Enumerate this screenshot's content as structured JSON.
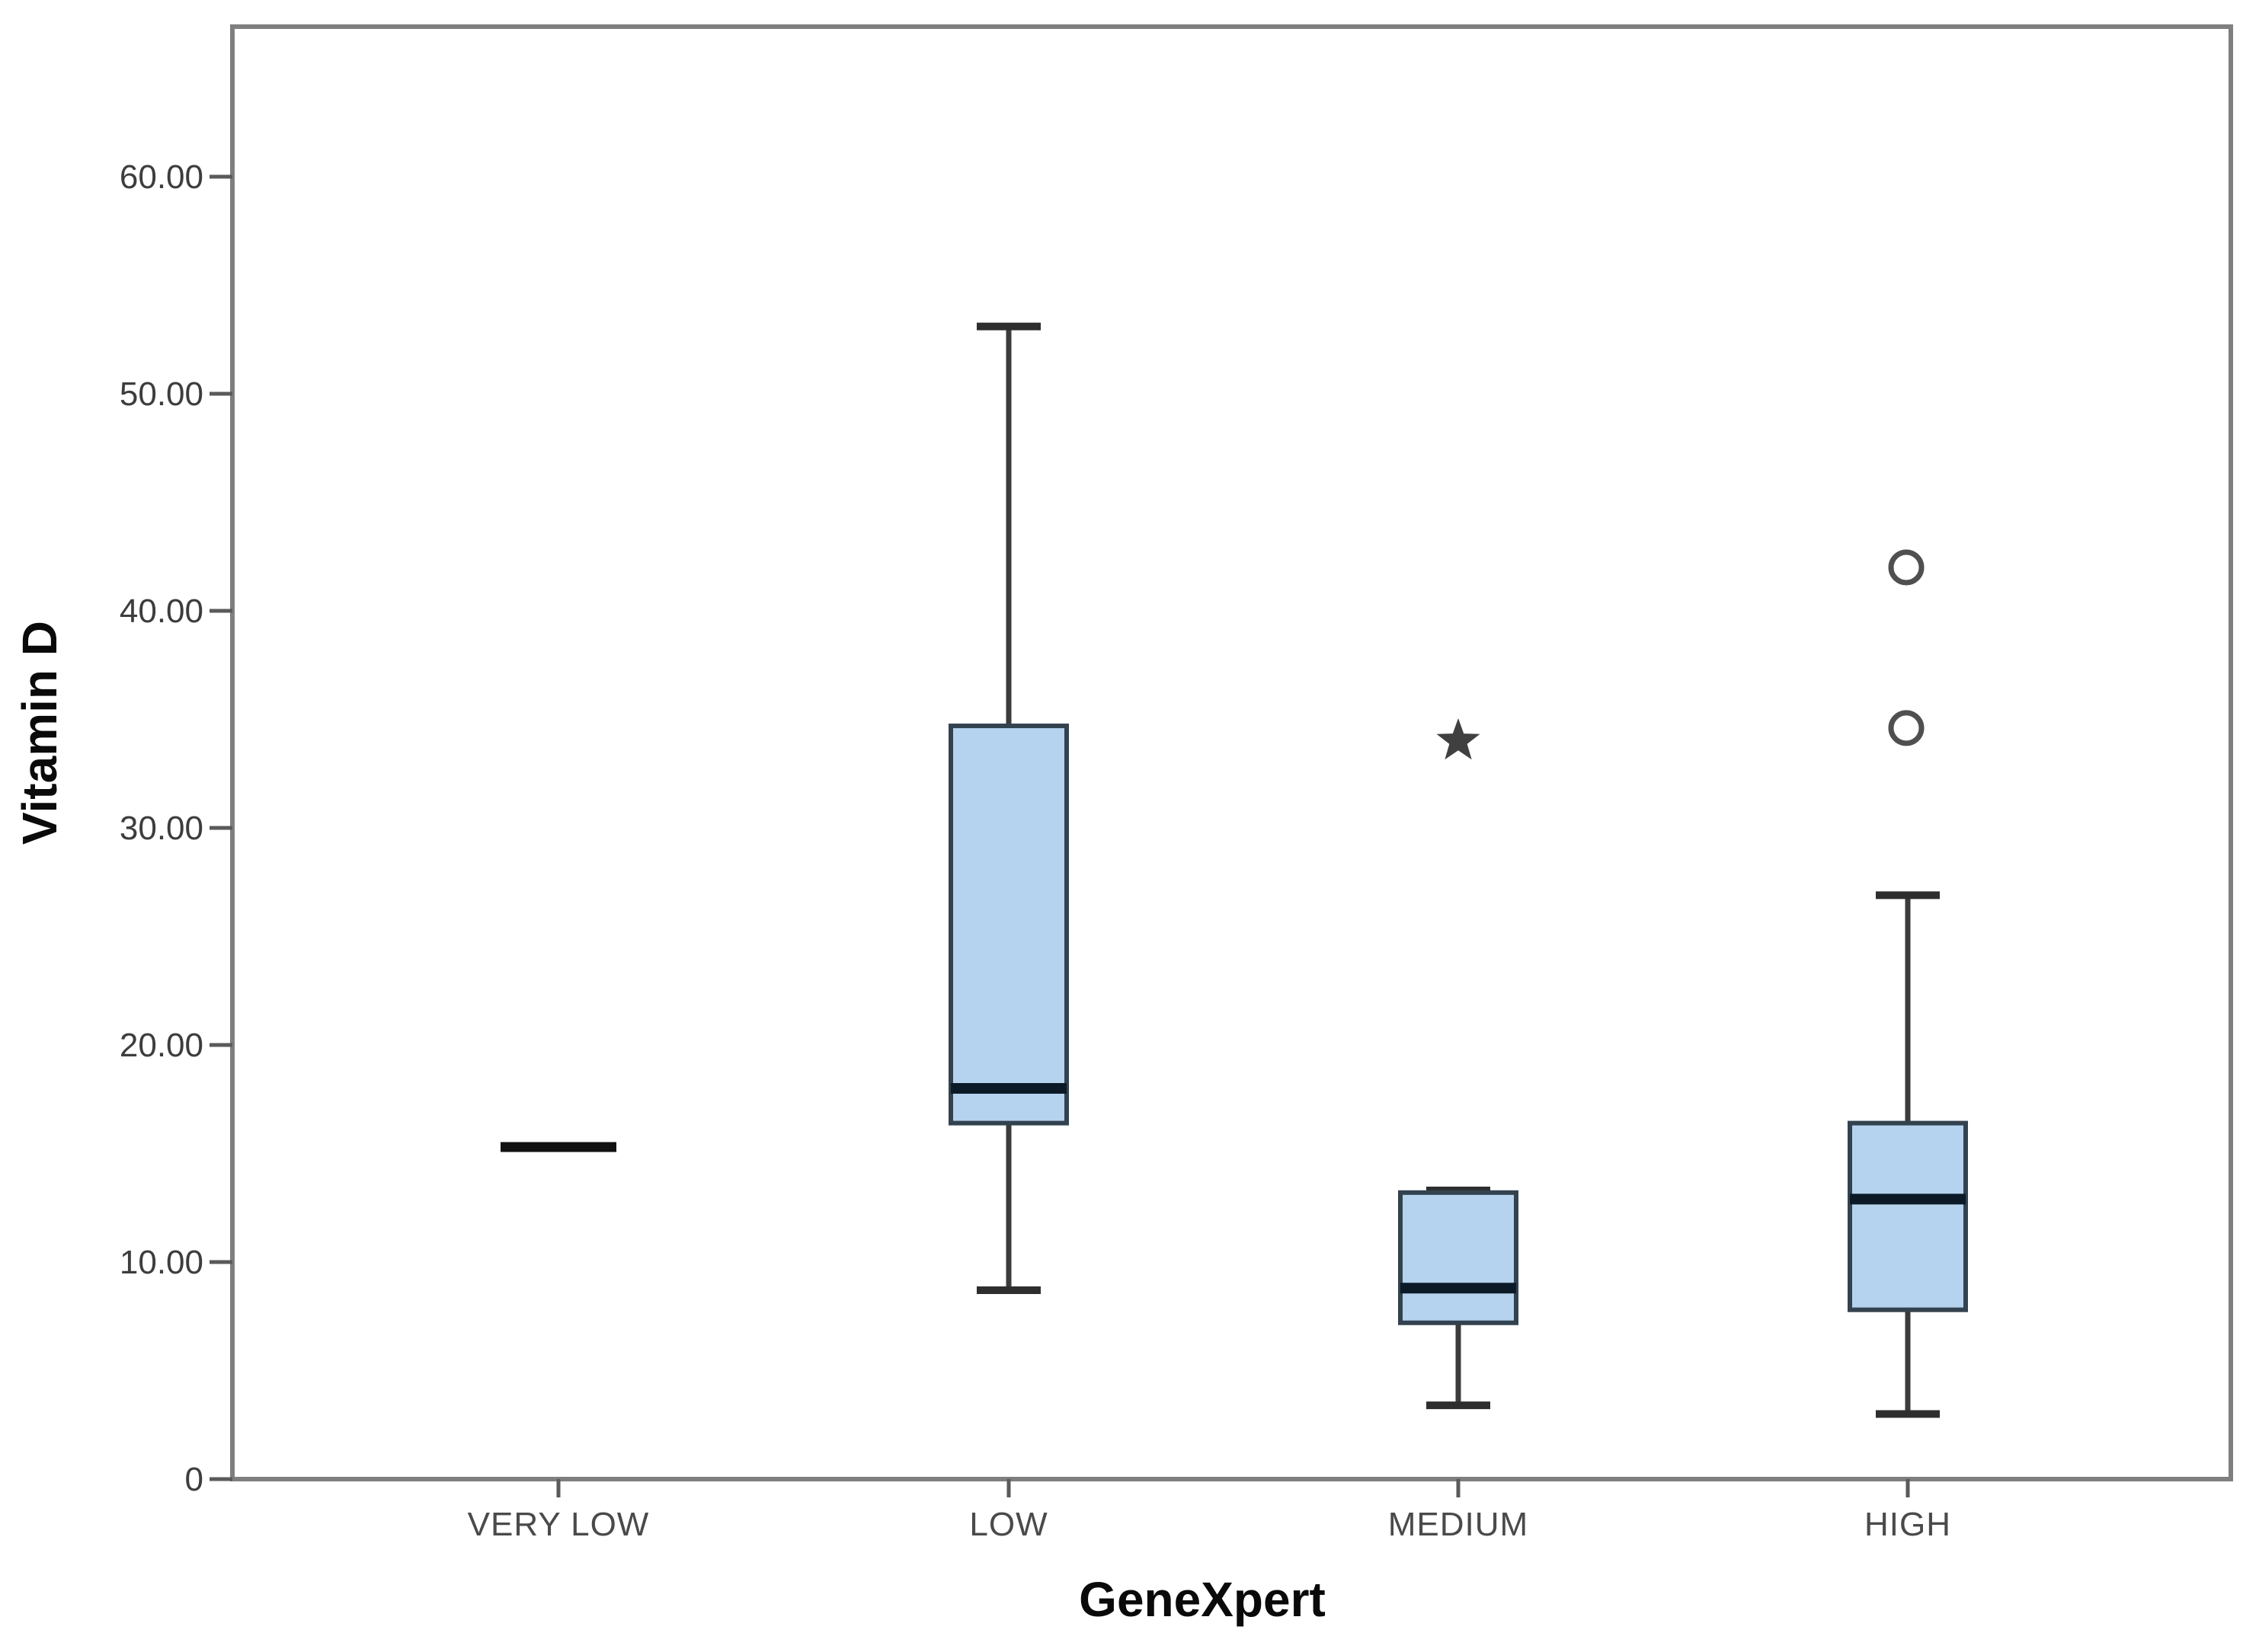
{
  "page": {
    "background_color": "#ffffff"
  },
  "chart_data": {
    "type": "boxplot",
    "title": "",
    "xlabel": "GeneXpert",
    "ylabel": "Vitamin D",
    "grid": false,
    "legend_position": "none",
    "y_axis": {
      "min": 0,
      "max": 66.9,
      "ticks": [
        {
          "value": 0,
          "label": "0"
        },
        {
          "value": 10,
          "label": "10.00"
        },
        {
          "value": 20,
          "label": "20.00"
        },
        {
          "value": 30,
          "label": "30.00"
        },
        {
          "value": 40,
          "label": "40.00"
        },
        {
          "value": 50,
          "label": "50.00"
        },
        {
          "value": 60,
          "label": "60.00"
        }
      ]
    },
    "categories": [
      "VERY LOW",
      "LOW",
      "MEDIUM",
      "HIGH"
    ],
    "boxes": [
      {
        "category": "VERY LOW",
        "single_value": 15.3,
        "whisker_low": null,
        "q1": null,
        "median": null,
        "q3": null,
        "whisker_high": null,
        "circle_outliers": [],
        "star_outliers": []
      },
      {
        "category": "LOW",
        "single_value": null,
        "whisker_low": 8.7,
        "q1": 16.4,
        "median": 18.0,
        "q3": 34.7,
        "whisker_high": 53.1,
        "circle_outliers": [],
        "star_outliers": []
      },
      {
        "category": "MEDIUM",
        "single_value": null,
        "whisker_low": 3.4,
        "q1": 7.2,
        "median": 8.8,
        "q3": 13.2,
        "whisker_high": 13.3,
        "circle_outliers": [],
        "star_outliers": [
          34.0
        ]
      },
      {
        "category": "HIGH",
        "single_value": null,
        "whisker_low": 3.0,
        "q1": 7.8,
        "median": 12.9,
        "q3": 16.4,
        "whisker_high": 26.9,
        "circle_outliers": [
          42.0,
          34.6
        ],
        "star_outliers": []
      }
    ],
    "colors": {
      "box_fill": "#b5d3ee",
      "box_border": "#33424f",
      "median_line": "#0c1a28",
      "single_value_line": "#111111",
      "whisker": "#3b3b3b",
      "whisker_cap": "#2e2e2e",
      "outlier_stroke": "#4f4f4f",
      "star_fill": "#404040",
      "frame": "#7f7f7f",
      "tick_mark": "#5a5a5a",
      "tick_label": "#3d3d3d",
      "category_label": "#4a4a4a",
      "axis_title": "#0a0a0a"
    }
  }
}
